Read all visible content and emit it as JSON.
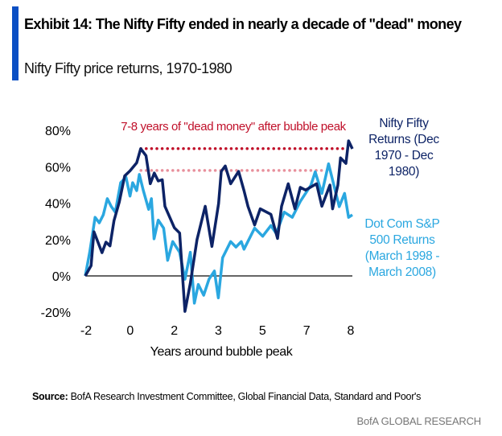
{
  "header": {
    "title": "Exhibit 14: The Nifty Fifty ended in nearly a decade of \"dead\" money",
    "subtitle": "Nifty Fifty price returns, 1970-1980"
  },
  "footer": {
    "source_label": "Source:",
    "source_text": " BofA Research Investment Committee, Global Financial Data, Standard and Poor's",
    "brand": "BofA GLOBAL RESEARCH"
  },
  "chart_data": {
    "type": "line",
    "title": "Nifty Fifty price returns, 1970-1980",
    "xlabel": "Years around bubble peak",
    "ylabel": "",
    "x_unit": "months since start",
    "xlim": [
      0,
      120
    ],
    "ylim": [
      -20,
      80
    ],
    "x_tick_labels": [
      "-2",
      "0",
      "2",
      "3",
      "5",
      "7",
      "8"
    ],
    "y_ticks": [
      -20,
      0,
      20,
      40,
      60,
      80
    ],
    "y_tick_labels": [
      "-20%",
      "0%",
      "20%",
      "40%",
      "60%",
      "80%"
    ],
    "annotation": "7-8 years of \"dead money\" after bubble peak",
    "reference_lines": [
      {
        "name": "nifty-peak",
        "value": 70,
        "color": "#c0102a"
      },
      {
        "name": "dotcom-peak",
        "value": 58,
        "color": "#e8909c"
      }
    ],
    "series": [
      {
        "name": "Nifty Fifty Returns (Dec 1970 - Dec 1980)",
        "legend_lines": [
          "Nifty Fifty",
          "Returns (Dec",
          "1970 - Dec",
          "1980)"
        ],
        "color": "#0d2366",
        "x": [
          0,
          2.6,
          3.9,
          7.5,
          9.3,
          11.1,
          12.9,
          15.3,
          17.7,
          20.1,
          23.1,
          24.9,
          27.3,
          29.2,
          31,
          32.8,
          34.6,
          35.8,
          40,
          42.4,
          44.8,
          47.2,
          50.2,
          53.9,
          56.9,
          59.9,
          61.1,
          62.9,
          65.3,
          68.9,
          71.3,
          73.1,
          76.1,
          78.6,
          83.4,
          86.4,
          88.2,
          91.2,
          94.2,
          96.6,
          99,
          103.9,
          106.3,
          109.9,
          111.1,
          113.5,
          114.7,
          117.1,
          118.3,
          120
        ],
        "y": [
          0,
          5.6,
          24.3,
          12.8,
          18.6,
          16.5,
          30.4,
          40.7,
          55,
          57.8,
          62.2,
          70,
          66.1,
          50.7,
          56.6,
          52.2,
          52.9,
          38.3,
          26.5,
          23.6,
          -19.5,
          -4,
          20,
          38.3,
          16.2,
          39.8,
          57.5,
          60.5,
          50.7,
          57.5,
          46.9,
          38.3,
          28,
          36.9,
          33.9,
          20.6,
          38.3,
          50.7,
          36.9,
          48.7,
          47.2,
          50.7,
          38.3,
          50,
          36.9,
          50,
          64.9,
          61.9,
          74.3,
          69.9
        ]
      },
      {
        "name": "Dot Com S&P 500 Returns (March 1998 - March 2008)",
        "legend_lines": [
          "Dot Com S&P",
          "500 Returns",
          "(March 1998 -",
          "March 2008)"
        ],
        "color": "#2aa7e0",
        "x": [
          0,
          2,
          4.4,
          6.3,
          8.1,
          9.9,
          11.7,
          13.5,
          15.9,
          18.3,
          20.1,
          21.3,
          23.1,
          24.3,
          26.1,
          28.5,
          29.7,
          30.9,
          32.8,
          35.2,
          37,
          39.3,
          42.4,
          44.8,
          47.2,
          49,
          50.8,
          53.2,
          55.6,
          58,
          59.8,
          61.7,
          65.3,
          67.7,
          70.1,
          71.3,
          76.1,
          79.7,
          83.4,
          85.8,
          89.4,
          93,
          96.6,
          101.4,
          103.3,
          106.3,
          109.3,
          111.7,
          114.1,
          116.5,
          118.3,
          120
        ],
        "y": [
          0,
          13,
          32.2,
          29.2,
          33.6,
          42.5,
          38.1,
          35.1,
          51.3,
          54.3,
          43.9,
          51.3,
          46.9,
          55.8,
          46.9,
          36.6,
          42.5,
          20.4,
          30.7,
          26.3,
          8.6,
          18.9,
          13,
          -1.8,
          13,
          -15,
          -4.7,
          -10.6,
          -1.8,
          2.7,
          -12.1,
          10,
          18.9,
          15.9,
          18.9,
          14.7,
          26.3,
          21.8,
          27.7,
          23.3,
          35.1,
          32.2,
          41,
          49.9,
          57.2,
          45.4,
          61.7,
          49.9,
          38.1,
          45.4,
          32.2,
          33.6
        ]
      }
    ],
    "grid": false,
    "legend_placement": "right"
  }
}
